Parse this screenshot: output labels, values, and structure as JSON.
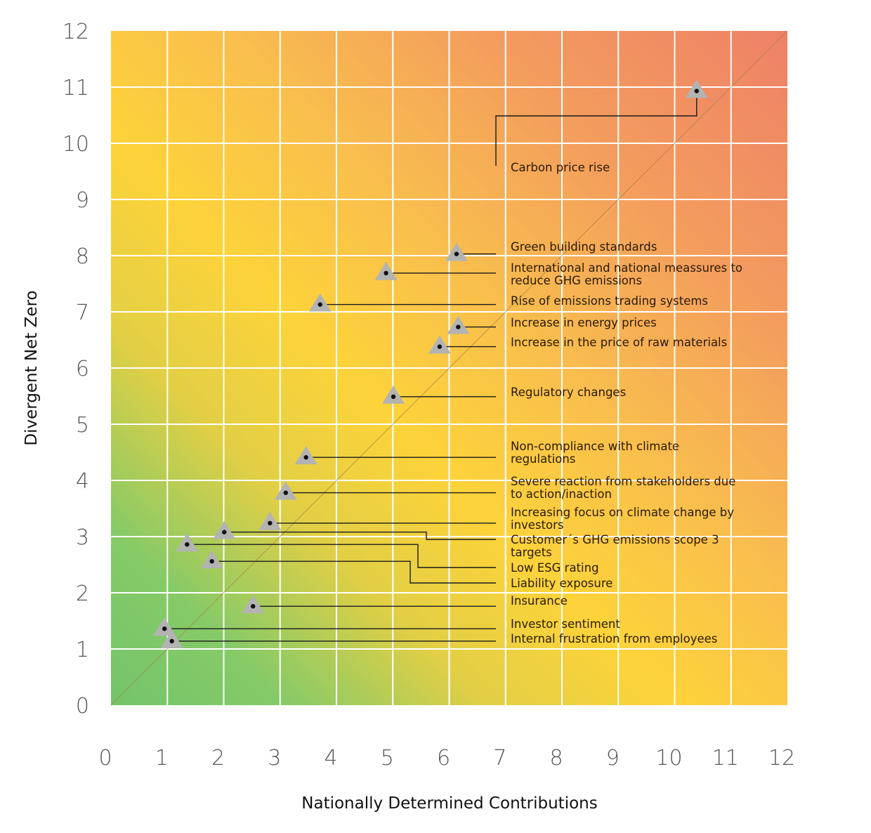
{
  "chart_data": {
    "type": "scatter",
    "title": "",
    "xlabel": "Nationally Determined Contributions",
    "ylabel": "Divergent Net Zero",
    "xlim": [
      0,
      12
    ],
    "ylim": [
      0,
      12
    ],
    "xticks": [
      "0",
      "1",
      "2",
      "3",
      "4",
      "5",
      "6",
      "7",
      "8",
      "9",
      "10",
      "11",
      "12"
    ],
    "yticks": [
      "0",
      "1",
      "2",
      "3",
      "4",
      "5",
      "6",
      "7",
      "8",
      "9",
      "10",
      "11",
      "12"
    ],
    "grid": true,
    "reference_line": "y = x diagonal",
    "marker": "triangle",
    "background": "diagonal gradient from green (low risk, bottom-left) through yellow to red-orange (high risk, top-right)",
    "colors": {
      "low": "#7fc96b",
      "mid": "#fdd33a",
      "high": "#ee8468",
      "marker": "#b3b3b3",
      "leader": "#1a1a1a",
      "grid": "#ffffff"
    },
    "points": [
      {
        "label": [
          "Carbon price rise"
        ],
        "x": 10.39,
        "y": 10.93
      },
      {
        "label": [
          "Green building standards"
        ],
        "x": 6.13,
        "y": 8.03
      },
      {
        "label": [
          "International and national meassures to",
          "reduce GHG emissions"
        ],
        "x": 4.88,
        "y": 7.69
      },
      {
        "label": [
          "Rise of emissions trading systems"
        ],
        "x": 3.71,
        "y": 7.13
      },
      {
        "label": [
          "Increase in energy prices"
        ],
        "x": 6.16,
        "y": 6.73
      },
      {
        "label": [
          "Increase in the price of raw materials"
        ],
        "x": 5.83,
        "y": 6.38
      },
      {
        "label": [
          "Regulatory changes"
        ],
        "x": 5.01,
        "y": 5.49
      },
      {
        "label": [
          "Non-compliance with climate",
          "regulations"
        ],
        "x": 3.46,
        "y": 4.41
      },
      {
        "label": [
          "Severe reaction from stakeholders due",
          "to action/inaction"
        ],
        "x": 3.1,
        "y": 3.78
      },
      {
        "label": [
          "Increasing focus on climate change by",
          "investors"
        ],
        "x": 2.82,
        "y": 3.24
      },
      {
        "label": [
          "Customer´s GHG emissions scope 3",
          "targets"
        ],
        "x": 2.01,
        "y": 3.08
      },
      {
        "label": [
          "Low ESG rating"
        ],
        "x": 1.35,
        "y": 2.86
      },
      {
        "label": [
          "Liability exposure"
        ],
        "x": 1.79,
        "y": 2.56
      },
      {
        "label": [
          "Insurance"
        ],
        "x": 2.52,
        "y": 1.76
      },
      {
        "label": [
          "Investor sentiment"
        ],
        "x": 0.95,
        "y": 1.36
      },
      {
        "label": [
          "Internal frustration from employees"
        ],
        "x": 1.08,
        "y": 1.14
      }
    ]
  }
}
